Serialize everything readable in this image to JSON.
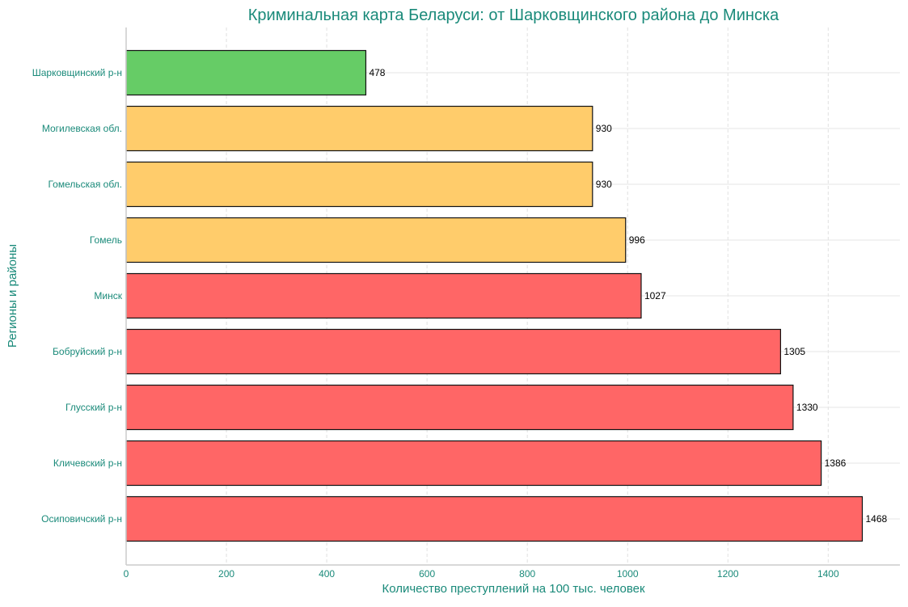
{
  "chart_data": {
    "type": "bar",
    "orientation": "horizontal",
    "title": "Криминальная карта Беларуси: от Шарковщинского района до Минска",
    "xlabel": "Количество преступлений на 100 тыс. человек",
    "ylabel": "Регионы и районы",
    "categories": [
      "Шарковщинский р-н",
      "Могилевская обл.",
      "Гомельская обл.",
      "Гомель",
      "Минск",
      "Бобруйский р-н",
      "Глусский р-н",
      "Кличевский р-н",
      "Осиповичский р-н"
    ],
    "values": [
      478,
      930,
      930,
      996,
      1027,
      1305,
      1330,
      1386,
      1468
    ],
    "bar_colors": [
      "#66cc66",
      "#ffcc6b",
      "#ffcc6b",
      "#ffcc6b",
      "#ff6666",
      "#ff6666",
      "#ff6666",
      "#ff6666",
      "#ff6666"
    ],
    "xticks": [
      0,
      200,
      400,
      600,
      800,
      1000,
      1200,
      1400
    ],
    "xlim": [
      0,
      1543
    ],
    "grid": true,
    "text_color": "#1a8a7a"
  }
}
